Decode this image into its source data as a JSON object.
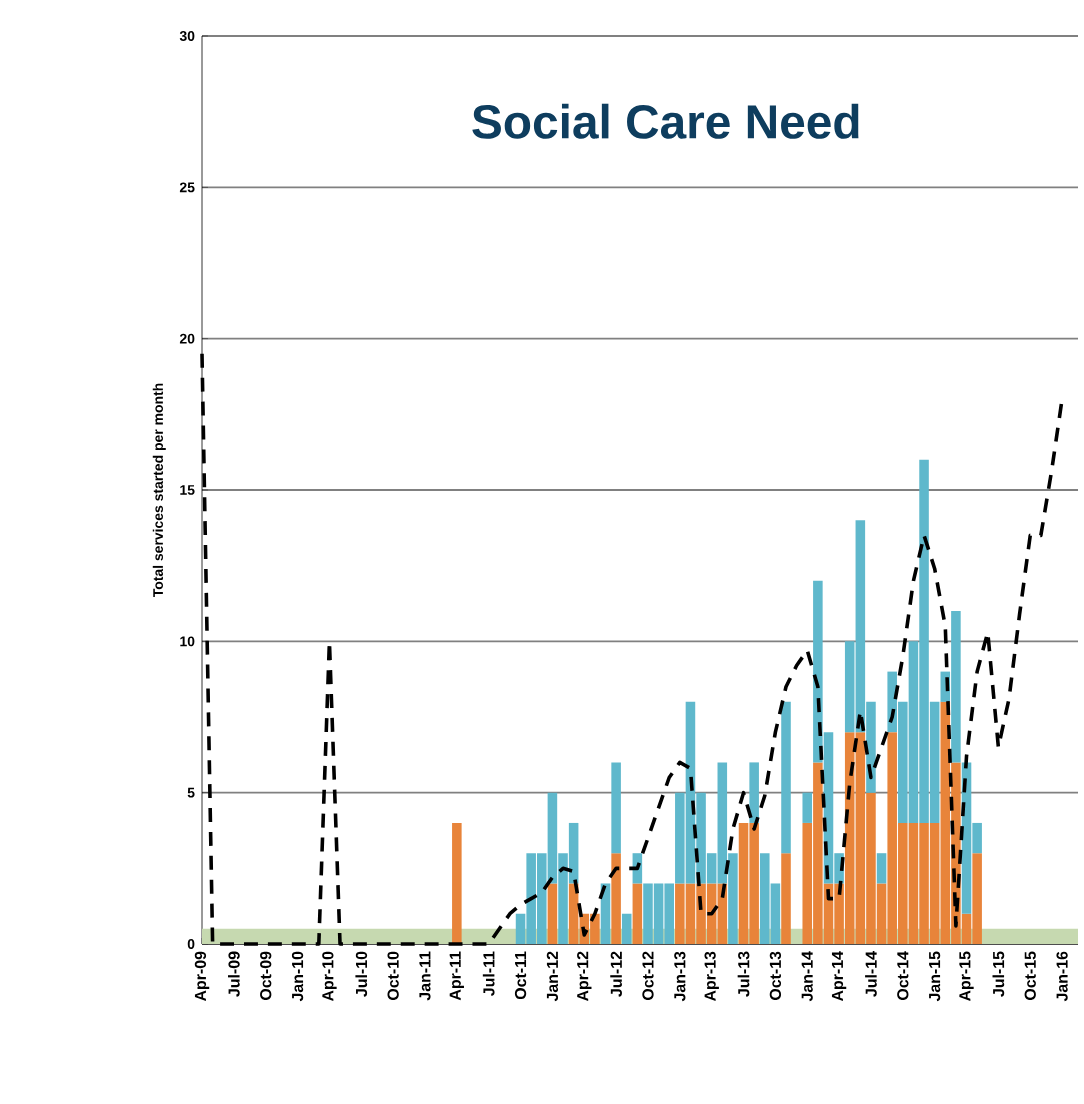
{
  "chart_data": {
    "type": "bar",
    "title": "Social Care Need",
    "ylabel": "Total services started per month",
    "stacked": true,
    "grid": "y",
    "categories": [
      "Apr-09",
      null,
      null,
      "Jul-09",
      null,
      null,
      "Oct-09",
      null,
      null,
      "Jan-10",
      null,
      null,
      "Apr-10",
      null,
      null,
      "Jul-10",
      null,
      null,
      "Oct-10",
      null,
      null,
      "Jan-11",
      null,
      null,
      "Apr-11",
      null,
      null,
      "Jul-11",
      null,
      null,
      "Oct-11",
      null,
      null,
      "Jan-12",
      null,
      null,
      "Apr-12",
      null,
      null,
      "Jul-12",
      null,
      null,
      "Oct-12",
      null,
      null,
      "Jan-13",
      null,
      null,
      "Apr-13",
      null,
      null,
      "Jul-13",
      null,
      null,
      "Oct-13",
      null,
      null,
      "Jan-14",
      null,
      null,
      "Apr-14",
      null,
      null,
      "Jul-14",
      null,
      null,
      "Oct-14",
      null,
      null,
      "Jan-15",
      null,
      null,
      "Apr-15",
      null,
      null,
      "Jul-15",
      null,
      null,
      "Oct-15",
      null,
      null,
      "Jan-16"
    ],
    "ylim": [
      0,
      30
    ],
    "yticks": [
      0,
      5,
      10,
      15,
      20,
      25,
      30
    ],
    "bands": [
      {
        "axis": "y",
        "from": 0,
        "to": 0.5,
        "color": "#c6d9b0"
      }
    ],
    "series": [
      {
        "color": "#e8843a",
        "values": [
          null,
          null,
          null,
          null,
          null,
          null,
          null,
          null,
          null,
          null,
          null,
          null,
          null,
          null,
          null,
          null,
          null,
          null,
          null,
          null,
          null,
          null,
          null,
          null,
          4,
          null,
          null,
          null,
          null,
          null,
          null,
          null,
          null,
          2,
          null,
          2,
          1,
          1,
          null,
          3,
          null,
          2,
          null,
          null,
          null,
          2,
          2,
          2,
          2,
          2,
          null,
          4,
          4,
          null,
          null,
          3,
          null,
          4,
          6,
          2,
          2,
          7,
          7,
          5,
          2,
          7,
          4,
          4,
          4,
          4,
          8,
          6,
          1,
          3,
          null,
          null,
          null,
          null,
          null,
          null,
          null,
          null
        ]
      },
      {
        "color": "#5fb8cc",
        "values": [
          null,
          null,
          null,
          null,
          null,
          null,
          null,
          null,
          null,
          null,
          null,
          null,
          null,
          null,
          null,
          null,
          null,
          null,
          null,
          null,
          null,
          null,
          null,
          null,
          null,
          null,
          null,
          null,
          null,
          null,
          1,
          3,
          3,
          3,
          3,
          2,
          null,
          null,
          2,
          3,
          1,
          1,
          2,
          2,
          2,
          3,
          6,
          3,
          1,
          4,
          3,
          null,
          2,
          3,
          2,
          5,
          null,
          1,
          6,
          5,
          1,
          3,
          7,
          3,
          1,
          2,
          4,
          6,
          12,
          4,
          1,
          5,
          5,
          1,
          null,
          null,
          null,
          null,
          null,
          null,
          null,
          null
        ]
      },
      {
        "type": "line",
        "color": "#000000",
        "line_style": "dashed",
        "marker": "none",
        "values": [
          19.5,
          0,
          0,
          0,
          0,
          0,
          0,
          0,
          0,
          0,
          0,
          0,
          10,
          0,
          0,
          0,
          0,
          0,
          0,
          0,
          0,
          0,
          0,
          0,
          0,
          0,
          0,
          0,
          0.5,
          1,
          1.3,
          1.5,
          1.7,
          2.2,
          2.5,
          2.4,
          0.3,
          1,
          2,
          2.5,
          2.5,
          2.5,
          3.5,
          4.5,
          5.5,
          6,
          5.8,
          1,
          1,
          1.5,
          3.8,
          5,
          3.8,
          4.9,
          7,
          8.5,
          9.2,
          9.7,
          8.5,
          1.5,
          1.5,
          5.3,
          7.7,
          5.5,
          6.5,
          7.5,
          9.5,
          12,
          13.5,
          12.4,
          10.5,
          0.6,
          6.2,
          9,
          10.3,
          6.5,
          8.1,
          10.9,
          13.5,
          13.5,
          15.6,
          18
        ]
      }
    ]
  }
}
